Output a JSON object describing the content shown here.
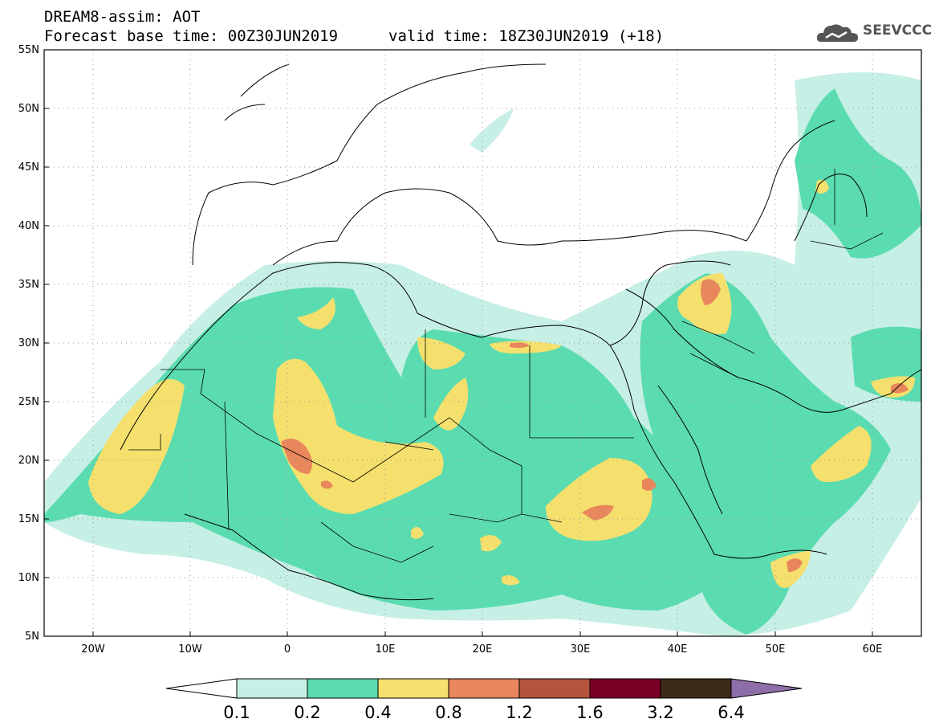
{
  "header": {
    "title": "DREAM8-assim: AOT",
    "base_time": "Forecast base time: 00Z30JUN2019",
    "valid_time": "valid time: 18Z30JUN2019 (+18)"
  },
  "logo": {
    "text": "SEEVCCC",
    "icon": "cloud-icon"
  },
  "map": {
    "lon_range": [
      -25,
      65
    ],
    "lat_range": [
      5,
      55
    ],
    "lat_ticks": [
      "5N",
      "10N",
      "15N",
      "20N",
      "25N",
      "30N",
      "35N",
      "40N",
      "45N",
      "50N",
      "55N"
    ],
    "lon_ticks": [
      "20W",
      "10W",
      "0",
      "10E",
      "20E",
      "30E",
      "40E",
      "50E",
      "60E"
    ],
    "grid": "dotted"
  },
  "legend": {
    "thresholds": [
      "0.1",
      "0.2",
      "0.4",
      "0.8",
      "1.2",
      "1.6",
      "3.2",
      "6.4"
    ],
    "colors": [
      "#c6efe6",
      "#5bdcb0",
      "#f5e06d",
      "#e8865c",
      "#b5533e",
      "#7a0025",
      "#3d2a17"
    ],
    "arrow_low_color": "#ffffff",
    "arrow_high_color": "#8e6ea8"
  }
}
